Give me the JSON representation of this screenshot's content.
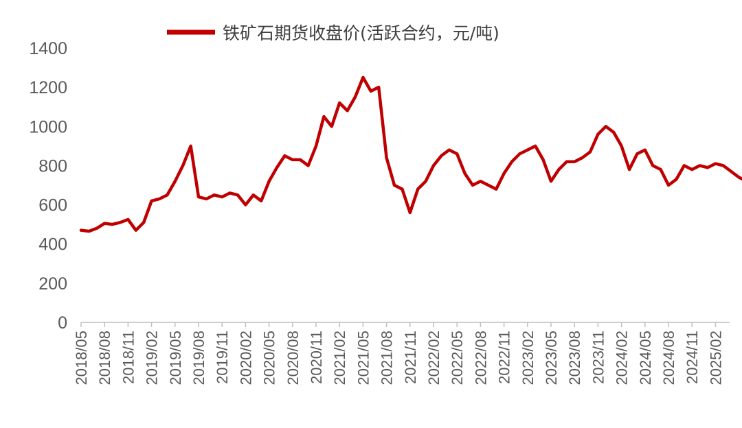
{
  "chart_data": {
    "type": "line",
    "title": "",
    "xlabel": "",
    "ylabel": "",
    "ylim": [
      0,
      1400
    ],
    "yticks": [
      0,
      200,
      400,
      600,
      800,
      1000,
      1200,
      1400
    ],
    "xticks": [
      "2018/05",
      "2018/08",
      "2018/11",
      "2019/02",
      "2019/05",
      "2019/08",
      "2019/11",
      "2020/02",
      "2020/05",
      "2020/08",
      "2020/11",
      "2021/02",
      "2021/05",
      "2021/08",
      "2021/11",
      "2022/02",
      "2022/05",
      "2022/08",
      "2022/11",
      "2023/02",
      "2023/05",
      "2023/08",
      "2023/11",
      "2024/02",
      "2024/05",
      "2024/08",
      "2024/11",
      "2025/02"
    ],
    "grid": false,
    "legend_position": "top",
    "series": [
      {
        "name": "铁矿石期货收盘价(活跃合约，元/吨)",
        "color": "#C00000",
        "x": [
          "2018/05",
          "2018/06",
          "2018/07",
          "2018/08",
          "2018/09",
          "2018/10",
          "2018/11",
          "2018/12",
          "2019/01",
          "2019/02",
          "2019/03",
          "2019/04",
          "2019/05",
          "2019/06",
          "2019/07",
          "2019/08",
          "2019/09",
          "2019/10",
          "2019/11",
          "2019/12",
          "2020/01",
          "2020/02",
          "2020/03",
          "2020/04",
          "2020/05",
          "2020/06",
          "2020/07",
          "2020/08",
          "2020/09",
          "2020/10",
          "2020/11",
          "2020/12",
          "2021/01",
          "2021/02",
          "2021/03",
          "2021/04",
          "2021/05",
          "2021/06",
          "2021/07",
          "2021/08",
          "2021/09",
          "2021/10",
          "2021/11",
          "2021/12",
          "2022/01",
          "2022/02",
          "2022/03",
          "2022/04",
          "2022/05",
          "2022/06",
          "2022/07",
          "2022/08",
          "2022/09",
          "2022/10",
          "2022/11",
          "2022/12",
          "2023/01",
          "2023/02",
          "2023/03",
          "2023/04",
          "2023/05",
          "2023/06",
          "2023/07",
          "2023/08",
          "2023/09",
          "2023/10",
          "2023/11",
          "2023/12",
          "2024/01",
          "2024/02",
          "2024/03",
          "2024/04",
          "2024/05",
          "2024/06",
          "2024/07",
          "2024/08",
          "2024/09",
          "2024/10",
          "2024/11",
          "2024/12",
          "2025/01",
          "2025/02",
          "2025/03",
          "2025/04",
          "2025/05",
          "2025/06"
        ],
        "values": [
          470,
          465,
          480,
          505,
          500,
          510,
          525,
          470,
          510,
          620,
          630,
          650,
          720,
          800,
          900,
          640,
          630,
          650,
          640,
          660,
          650,
          600,
          650,
          620,
          720,
          790,
          850,
          830,
          830,
          800,
          900,
          1050,
          1000,
          1120,
          1080,
          1150,
          1250,
          1180,
          1200,
          840,
          700,
          680,
          560,
          680,
          720,
          800,
          850,
          880,
          860,
          760,
          700,
          720,
          700,
          680,
          760,
          820,
          860,
          880,
          900,
          830,
          720,
          780,
          820,
          820,
          840,
          870,
          960,
          1000,
          970,
          900,
          780,
          860,
          880,
          800,
          780,
          700,
          730,
          800,
          780,
          800,
          790,
          810,
          800,
          770,
          740,
          720
        ]
      }
    ]
  }
}
